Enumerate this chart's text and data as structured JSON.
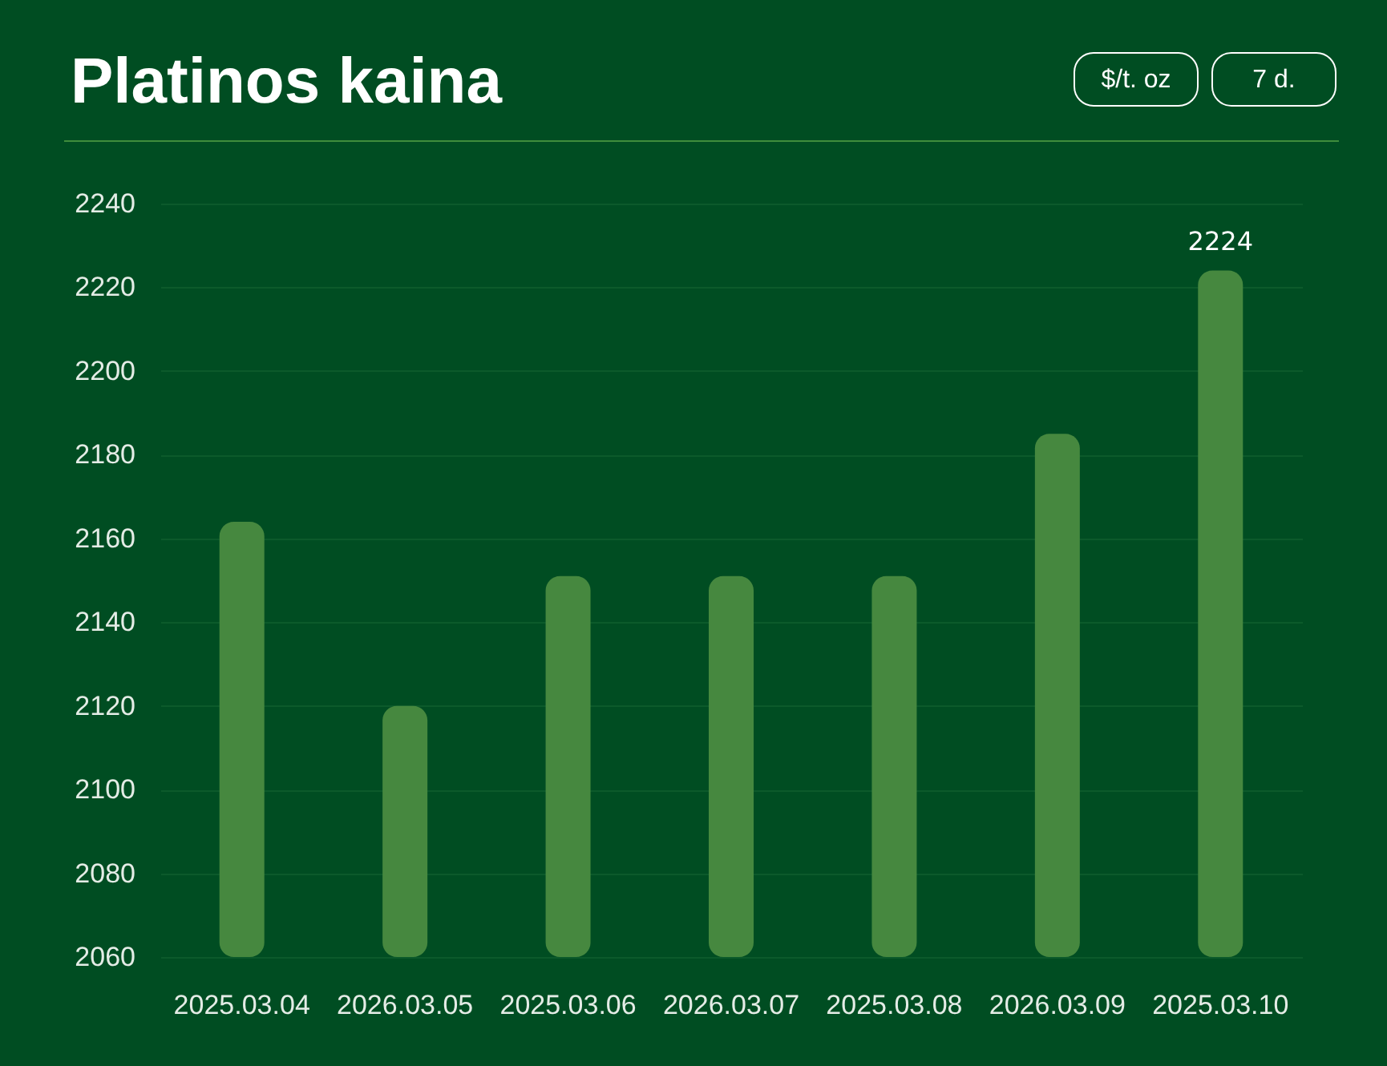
{
  "chart_data": {
    "type": "bar",
    "title": "Platinos kaina",
    "annotations": [
      "$/t. oz",
      "7 d."
    ],
    "categories": [
      "2025.03.04",
      "2026.03.05",
      "2025.03.06",
      "2026.03.07",
      "2025.03.08",
      "2026.03.09",
      "2025.03.10"
    ],
    "values": [
      2164,
      2120,
      2151,
      2151,
      2151,
      2185,
      2224
    ],
    "value_labels": [
      null,
      null,
      null,
      null,
      null,
      null,
      "2224"
    ],
    "color": "#46883f",
    "ylim": [
      2060,
      2240
    ],
    "yticks": [
      2060,
      2080,
      2100,
      2120,
      2140,
      2160,
      2180,
      2200,
      2220,
      2240
    ],
    "grid": "y"
  }
}
